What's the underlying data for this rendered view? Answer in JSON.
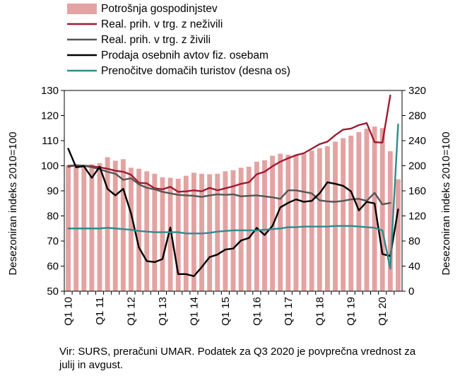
{
  "chart_data": {
    "type": "bar+line",
    "categories": [
      "Q1 10",
      "",
      "",
      "",
      "Q1 11",
      "",
      "",
      "",
      "Q1 12",
      "",
      "",
      "",
      "Q1 13",
      "",
      "",
      "",
      "Q1 14",
      "",
      "",
      "",
      "Q1 15",
      "",
      "",
      "",
      "Q1 16",
      "",
      "",
      "",
      "Q1 17",
      "",
      "",
      "",
      "Q1 18",
      "",
      "",
      "",
      "Q1 19",
      "",
      "",
      "",
      "Q1 20",
      "",
      ""
    ],
    "y_left": {
      "label": "Desezoniran indeks 2010=100",
      "min": 50,
      "max": 130,
      "ticks": [
        50,
        60,
        70,
        80,
        90,
        100,
        110,
        120,
        130
      ]
    },
    "y_right": {
      "label": "Desezoniran indeks 2010=100",
      "min": 0,
      "max": 320,
      "ticks": [
        0,
        40,
        80,
        120,
        160,
        200,
        240,
        280,
        320
      ]
    },
    "grid": false,
    "legend_position": "top-left",
    "series": [
      {
        "name": "Potrošnja gospodinjstev",
        "type": "bar",
        "axis": "left",
        "color": "#e3a3a3",
        "values": [
          100.2,
          100.0,
          100.4,
          100.6,
          101.0,
          103.4,
          102.0,
          102.6,
          99.2,
          98.8,
          97.8,
          96.8,
          95.4,
          95.2,
          94.8,
          96.0,
          97.2,
          96.8,
          96.6,
          96.8,
          97.8,
          98.2,
          99.2,
          99.6,
          101.6,
          102.2,
          104.0,
          104.8,
          104.4,
          104.4,
          104.8,
          106.0,
          107.0,
          107.8,
          109.6,
          111.0,
          112.0,
          113.4,
          114.8,
          115.6,
          115.0,
          105.8,
          94.6
        ]
      },
      {
        "name": "Real. prih. v trg. z neživili",
        "type": "line",
        "axis": "left",
        "color": "#9e1b32",
        "values": [
          99.6,
          100.2,
          100.0,
          99.8,
          99.4,
          98.8,
          98.0,
          97.6,
          96.4,
          93.2,
          93.0,
          91.0,
          90.6,
          91.6,
          89.6,
          89.8,
          90.2,
          89.8,
          91.2,
          90.2,
          91.0,
          91.8,
          92.8,
          93.4,
          96.6,
          97.6,
          99.8,
          101.6,
          103.0,
          104.2,
          105.0,
          106.8,
          108.6,
          109.6,
          112.2,
          114.4,
          114.8,
          116.2,
          117.0,
          109.4,
          109.2,
          128.0,
          null
        ]
      },
      {
        "name": "Real. prih. v trg. z živili",
        "type": "line",
        "axis": "left",
        "color": "#555555",
        "values": [
          100.0,
          100.2,
          100.0,
          99.4,
          98.6,
          97.6,
          96.8,
          94.4,
          95.0,
          92.6,
          91.2,
          90.6,
          89.6,
          89.0,
          88.4,
          88.2,
          88.0,
          87.6,
          88.2,
          88.6,
          88.4,
          88.6,
          87.8,
          88.0,
          88.2,
          87.8,
          87.4,
          86.8,
          90.2,
          90.2,
          89.6,
          89.0,
          86.2,
          85.8,
          85.6,
          86.0,
          86.6,
          86.8,
          86.0,
          89.2,
          84.6,
          85.2,
          null
        ]
      },
      {
        "name": "Prodaja osebnih avtov fiz. osebam",
        "type": "line",
        "axis": "left",
        "color": "#000000",
        "values": [
          106.8,
          99.4,
          99.8,
          95.2,
          99.6,
          90.8,
          88.2,
          90.8,
          81.0,
          67.4,
          62.0,
          61.6,
          62.8,
          75.4,
          56.8,
          56.8,
          56.0,
          59.6,
          63.6,
          64.6,
          66.6,
          67.0,
          70.2,
          71.2,
          75.2,
          72.4,
          76.0,
          83.4,
          85.2,
          86.6,
          85.6,
          86.0,
          89.0,
          93.4,
          92.8,
          92.0,
          89.8,
          82.2,
          85.6,
          85.0,
          64.8,
          64.0,
          82.6
        ]
      },
      {
        "name": "Prenočitve domačih turistov (desna os)",
        "type": "line",
        "axis": "right",
        "color": "#2f8c8c",
        "values": [
          100,
          100,
          100,
          100,
          100,
          101,
          100,
          99,
          98,
          96,
          95,
          94,
          94,
          94,
          94,
          92,
          92,
          92,
          93,
          95,
          96,
          97,
          97,
          97,
          97,
          98,
          99,
          100,
          102,
          102,
          103,
          103,
          103,
          103,
          104,
          104,
          104,
          103,
          102,
          101,
          97,
          36,
          266
        ]
      }
    ],
    "source_note": "Vir: SURS, preračuni UMAR. Podatek za Q3 2020 je povprečna vrednost za julij in avgust."
  }
}
